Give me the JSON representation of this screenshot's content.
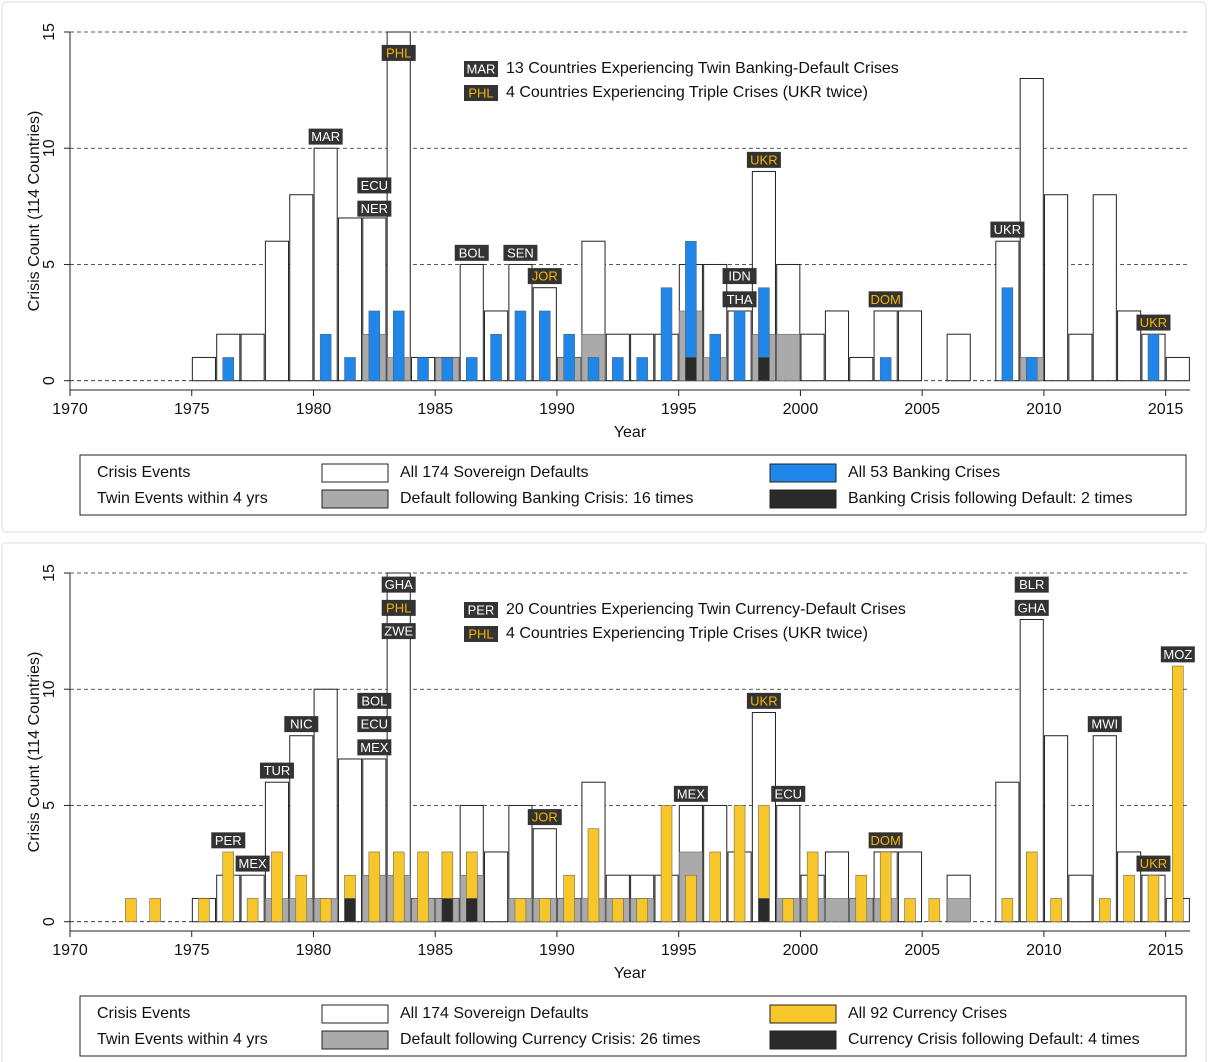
{
  "chart_data": [
    {
      "type": "bar",
      "x_label": "Year",
      "y_label": "Crisis Count (114 Countries)",
      "xlim": [
        1970,
        2016
      ],
      "ylim": [
        -0.4,
        15
      ],
      "xticks": [
        1970,
        1975,
        1980,
        1985,
        1990,
        1995,
        2000,
        2005,
        2010,
        2015
      ],
      "yticks": [
        0,
        5,
        10,
        15
      ],
      "grid": true,
      "x": [
        1972,
        1973,
        1974,
        1975,
        1976,
        1977,
        1978,
        1979,
        1980,
        1981,
        1982,
        1983,
        1984,
        1985,
        1986,
        1987,
        1988,
        1989,
        1990,
        1991,
        1992,
        1993,
        1994,
        1995,
        1996,
        1997,
        1998,
        1999,
        2000,
        2001,
        2002,
        2003,
        2004,
        2005,
        2006,
        2007,
        2008,
        2009,
        2010,
        2011,
        2012,
        2013,
        2014,
        2015
      ],
      "series": [
        {
          "name": "All 174 Sovereign Defaults",
          "color": "#ffffff",
          "values": [
            0,
            0,
            0,
            1,
            2,
            2,
            6,
            8,
            10,
            7,
            7,
            15,
            1,
            1,
            5,
            3,
            5,
            4,
            1,
            6,
            2,
            2,
            2,
            5,
            5,
            3,
            9,
            5,
            2,
            3,
            1,
            3,
            3,
            0,
            2,
            0,
            6,
            13,
            8,
            2,
            8,
            3,
            2,
            1
          ]
        },
        {
          "name": "All 53 Banking Crises",
          "color": "#1f87ea",
          "values": [
            0,
            0,
            0,
            0,
            1,
            0,
            0,
            0,
            2,
            1,
            3,
            3,
            1,
            1,
            1,
            2,
            3,
            3,
            2,
            1,
            1,
            1,
            4,
            6,
            2,
            3,
            4,
            0,
            0,
            0,
            0,
            1,
            0,
            0,
            0,
            0,
            4,
            1,
            0,
            0,
            0,
            0,
            2,
            0
          ]
        },
        {
          "name": "Default following Banking Crisis: 16 times",
          "color": "#aaaaaa",
          "values": [
            0,
            0,
            0,
            0,
            0,
            0,
            0,
            0,
            0,
            0,
            2,
            1,
            0,
            1,
            0,
            0,
            0,
            0,
            1,
            2,
            0,
            0,
            0,
            3,
            1,
            0,
            2,
            2,
            0,
            0,
            0,
            0,
            0,
            0,
            0,
            0,
            0,
            1,
            0,
            0,
            0,
            0,
            0,
            0
          ]
        },
        {
          "name": "Banking Crisis following Default: 2 times",
          "color": "#2a2a2a",
          "values": [
            0,
            0,
            0,
            0,
            0,
            0,
            0,
            0,
            0,
            0,
            0,
            0,
            0,
            0,
            0,
            0,
            0,
            0,
            0,
            0,
            0,
            0,
            0,
            1,
            0,
            0,
            1,
            0,
            0,
            0,
            0,
            0,
            0,
            0,
            0,
            0,
            0,
            0,
            0,
            0,
            0,
            0,
            0,
            0
          ]
        }
      ],
      "legend_titles": [
        "Crisis Events",
        "Twin Events within 4 yrs"
      ],
      "key": [
        {
          "tag": "MAR",
          "text": "13 Countries Experiencing Twin Banking-Default Crises",
          "color": "#ffffff"
        },
        {
          "tag": "PHL",
          "text": "4 Countries Experiencing Triple Crises (UKR twice)",
          "color": "#f5b400"
        }
      ],
      "annotations": [
        {
          "text": "MAR",
          "x": 1980,
          "y": 10.5,
          "color": "#ffffff"
        },
        {
          "text": "ECU",
          "x": 1982,
          "y": 8.4,
          "color": "#ffffff"
        },
        {
          "text": "NER",
          "x": 1982,
          "y": 7.4,
          "color": "#ffffff"
        },
        {
          "text": "PHL",
          "x": 1983,
          "y": 14.1,
          "color": "#f5b400"
        },
        {
          "text": "BOL",
          "x": 1986,
          "y": 5.5,
          "color": "#ffffff"
        },
        {
          "text": "SEN",
          "x": 1988,
          "y": 5.5,
          "color": "#ffffff"
        },
        {
          "text": "JOR",
          "x": 1989,
          "y": 4.5,
          "color": "#f5b400"
        },
        {
          "text": "IDN",
          "x": 1997,
          "y": 4.5,
          "color": "#ffffff"
        },
        {
          "text": "THA",
          "x": 1997,
          "y": 3.5,
          "color": "#ffffff"
        },
        {
          "text": "UKR",
          "x": 1998,
          "y": 9.5,
          "color": "#f5b400"
        },
        {
          "text": "DOM",
          "x": 2003,
          "y": 3.5,
          "color": "#f5b400"
        },
        {
          "text": "UKR",
          "x": 2008,
          "y": 6.5,
          "color": "#ffffff"
        },
        {
          "text": "UKR",
          "x": 2014,
          "y": 2.5,
          "color": "#f5b400"
        }
      ]
    },
    {
      "type": "bar",
      "x_label": "Year",
      "y_label": "Crisis Count (114 Countries)",
      "xlim": [
        1970,
        2016
      ],
      "ylim": [
        -0.4,
        15
      ],
      "xticks": [
        1970,
        1975,
        1980,
        1985,
        1990,
        1995,
        2000,
        2005,
        2010,
        2015
      ],
      "yticks": [
        0,
        5,
        10,
        15
      ],
      "grid": true,
      "x": [
        1972,
        1973,
        1974,
        1975,
        1976,
        1977,
        1978,
        1979,
        1980,
        1981,
        1982,
        1983,
        1984,
        1985,
        1986,
        1987,
        1988,
        1989,
        1990,
        1991,
        1992,
        1993,
        1994,
        1995,
        1996,
        1997,
        1998,
        1999,
        2000,
        2001,
        2002,
        2003,
        2004,
        2005,
        2006,
        2007,
        2008,
        2009,
        2010,
        2011,
        2012,
        2013,
        2014,
        2015
      ],
      "series": [
        {
          "name": "All 174 Sovereign Defaults",
          "color": "#ffffff",
          "values": [
            0,
            0,
            0,
            1,
            2,
            2,
            6,
            8,
            10,
            7,
            7,
            15,
            1,
            1,
            5,
            3,
            5,
            4,
            1,
            6,
            2,
            2,
            2,
            5,
            5,
            3,
            9,
            5,
            2,
            3,
            1,
            3,
            3,
            0,
            2,
            0,
            6,
            13,
            8,
            2,
            8,
            3,
            2,
            1
          ]
        },
        {
          "name": "All 92 Currency Crises",
          "color": "#f7c62a",
          "values": [
            1,
            1,
            0,
            1,
            3,
            1,
            3,
            2,
            1,
            2,
            3,
            3,
            3,
            3,
            3,
            0,
            1,
            1,
            2,
            4,
            1,
            1,
            5,
            2,
            3,
            5,
            5,
            1,
            3,
            0,
            2,
            3,
            1,
            1,
            0,
            0,
            1,
            3,
            1,
            0,
            1,
            2,
            2,
            11
          ]
        },
        {
          "name": "Default following Currency Crisis: 26 times",
          "color": "#aaaaaa",
          "values": [
            0,
            0,
            0,
            0,
            0,
            0,
            1,
            1,
            1,
            0,
            2,
            2,
            1,
            1,
            2,
            0,
            1,
            1,
            1,
            1,
            1,
            1,
            0,
            3,
            0,
            0,
            0,
            1,
            1,
            1,
            1,
            1,
            0,
            0,
            1,
            0,
            0,
            0,
            0,
            0,
            0,
            0,
            0,
            0
          ]
        },
        {
          "name": "Currency Crisis following Default: 4 times",
          "color": "#2a2a2a",
          "values": [
            0,
            0,
            0,
            0,
            0,
            0,
            0,
            0,
            0,
            1,
            0,
            0,
            0,
            1,
            1,
            0,
            0,
            0,
            0,
            0,
            0,
            0,
            0,
            0,
            0,
            0,
            1,
            0,
            0,
            0,
            0,
            0,
            0,
            0,
            0,
            0,
            0,
            0,
            0,
            0,
            0,
            0,
            0,
            0
          ]
        }
      ],
      "legend_titles": [
        "Crisis Events",
        "Twin Events within 4 yrs"
      ],
      "key": [
        {
          "tag": "PER",
          "text": "20 Countries Experiencing Twin Currency-Default Crises",
          "color": "#ffffff"
        },
        {
          "tag": "PHL",
          "text": "4 Countries Experiencing Triple Crises (UKR twice)",
          "color": "#f5b400"
        }
      ],
      "annotations": [
        {
          "text": "PER",
          "x": 1976,
          "y": 3.5,
          "color": "#ffffff"
        },
        {
          "text": "MEX",
          "x": 1977,
          "y": 2.5,
          "color": "#ffffff"
        },
        {
          "text": "TUR",
          "x": 1978,
          "y": 6.5,
          "color": "#ffffff"
        },
        {
          "text": "NIC",
          "x": 1979,
          "y": 8.5,
          "color": "#ffffff"
        },
        {
          "text": "BOL",
          "x": 1982,
          "y": 9.5,
          "color": "#ffffff"
        },
        {
          "text": "ECU",
          "x": 1982,
          "y": 8.5,
          "color": "#ffffff"
        },
        {
          "text": "MEX",
          "x": 1982,
          "y": 7.5,
          "color": "#ffffff"
        },
        {
          "text": "GHA",
          "x": 1983,
          "y": 14.5,
          "color": "#ffffff"
        },
        {
          "text": "PHL",
          "x": 1983,
          "y": 13.5,
          "color": "#f5b400"
        },
        {
          "text": "ZWE",
          "x": 1983,
          "y": 12.5,
          "color": "#ffffff"
        },
        {
          "text": "JOR",
          "x": 1989,
          "y": 4.5,
          "color": "#f5b400"
        },
        {
          "text": "MEX",
          "x": 1995,
          "y": 5.5,
          "color": "#ffffff"
        },
        {
          "text": "UKR",
          "x": 1998,
          "y": 9.5,
          "color": "#f5b400"
        },
        {
          "text": "ECU",
          "x": 1999,
          "y": 5.5,
          "color": "#ffffff"
        },
        {
          "text": "DOM",
          "x": 2003,
          "y": 3.5,
          "color": "#f5b400"
        },
        {
          "text": "BLR",
          "x": 2009,
          "y": 14.5,
          "color": "#ffffff"
        },
        {
          "text": "GHA",
          "x": 2009,
          "y": 13.5,
          "color": "#ffffff"
        },
        {
          "text": "MWI",
          "x": 2012,
          "y": 8.5,
          "color": "#ffffff"
        },
        {
          "text": "UKR",
          "x": 2014,
          "y": 2.5,
          "color": "#f5b400"
        },
        {
          "text": "MOZ",
          "x": 2015,
          "y": 11.5,
          "color": "#ffffff"
        }
      ]
    }
  ]
}
